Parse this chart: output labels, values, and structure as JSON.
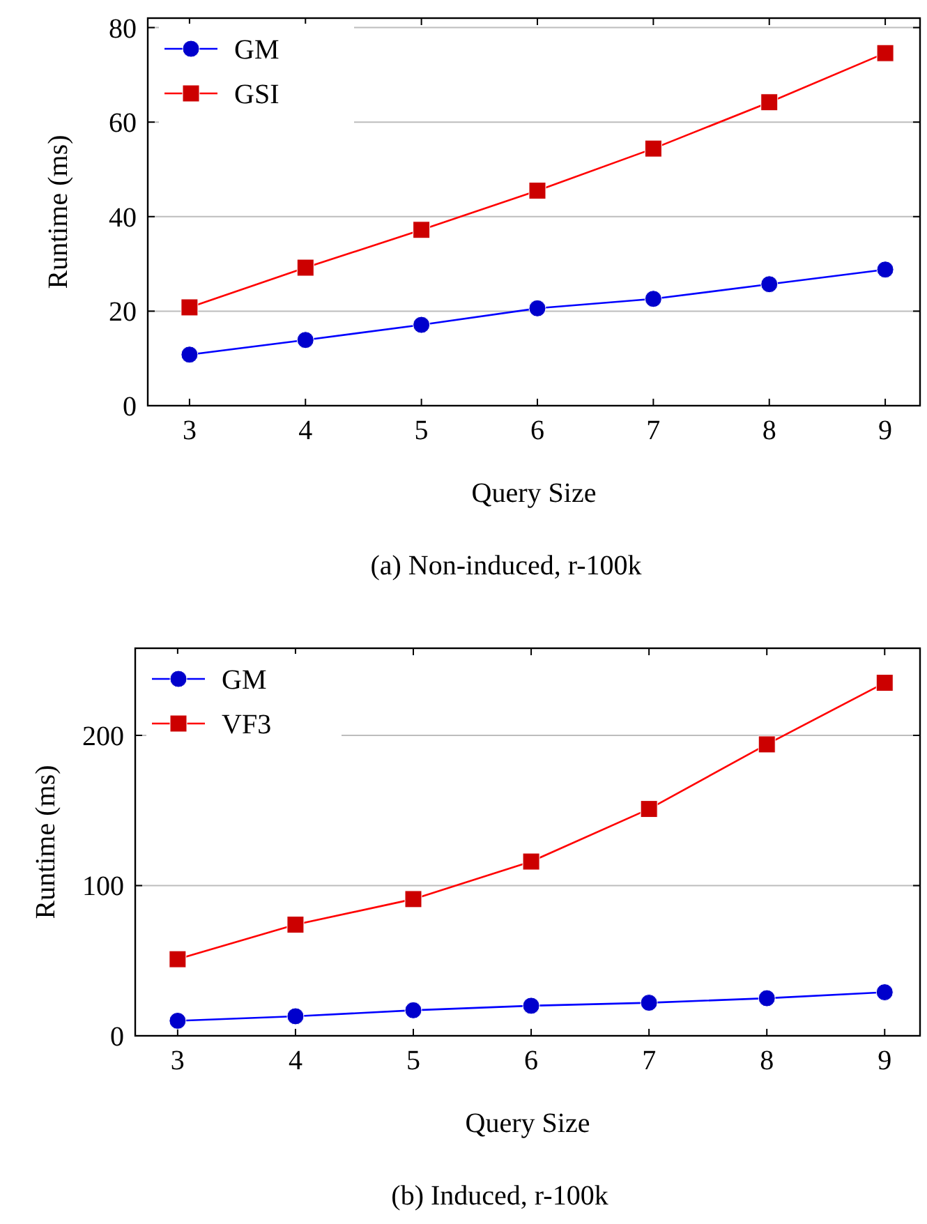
{
  "chart_data": [
    {
      "type": "line",
      "xlabel": "Query Size",
      "ylabel": "Runtime (ms)",
      "x": [
        3,
        4,
        5,
        6,
        7,
        8,
        9
      ],
      "xlim": [
        2.64,
        9.3
      ],
      "xticks": [
        3,
        4,
        5,
        6,
        7,
        8,
        9
      ],
      "ylim": [
        0,
        82
      ],
      "yticks": [
        0,
        20,
        40,
        60,
        80
      ],
      "grid": "y",
      "legend": "top left",
      "series": [
        {
          "name": "GM",
          "color": "#0000cc",
          "marker": "circle",
          "values": [
            10.8,
            13.9,
            17.1,
            20.6,
            22.6,
            25.7,
            28.8
          ]
        },
        {
          "name": "GSI",
          "color": "#cc0000",
          "marker": "square",
          "values": [
            20.8,
            29.2,
            37.2,
            45.5,
            54.4,
            64.2,
            74.6
          ]
        }
      ],
      "annotations": [
        "(a) Non-induced, r-100k"
      ]
    },
    {
      "type": "line",
      "xlabel": "Query Size",
      "ylabel": "Runtime (ms)",
      "x": [
        3,
        4,
        5,
        6,
        7,
        8,
        9
      ],
      "xlim": [
        2.64,
        9.3
      ],
      "xticks": [
        3,
        4,
        5,
        6,
        7,
        8,
        9
      ],
      "ylim": [
        0,
        258
      ],
      "yticks": [
        0,
        100,
        200
      ],
      "grid": "y",
      "legend": "top left",
      "series": [
        {
          "name": "GM",
          "color": "#0000cc",
          "marker": "circle",
          "values": [
            10,
            13,
            17,
            20,
            22,
            25,
            29
          ]
        },
        {
          "name": "VF3",
          "color": "#cc0000",
          "marker": "square",
          "values": [
            51,
            74,
            91,
            116,
            151,
            194,
            235
          ]
        }
      ],
      "annotations": [
        "(b) Induced, r-100k"
      ]
    }
  ]
}
